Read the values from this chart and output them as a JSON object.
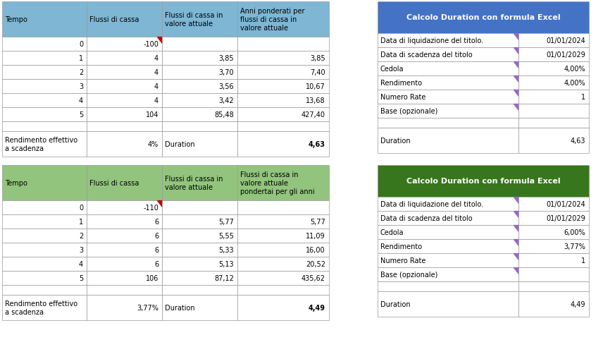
{
  "fig_width": 8.56,
  "fig_height": 5.1,
  "dpi": 100,
  "bg_color": "#ffffff",
  "table1": {
    "headers": [
      "Tempo",
      "Flussi di cassa",
      "Flussi di cassa in\nvalore attuale",
      "Anni ponderati per\nflussi di cassa in\nvalore attuale"
    ],
    "header_bg": "#7eb6d4",
    "header_text_color": "#000000",
    "rows": [
      [
        "0",
        "-100",
        "",
        ""
      ],
      [
        "1",
        "4",
        "3,85",
        "3,85"
      ],
      [
        "2",
        "4",
        "3,70",
        "7,40"
      ],
      [
        "3",
        "4",
        "3,56",
        "10,67"
      ],
      [
        "4",
        "4",
        "3,42",
        "13,68"
      ],
      [
        "5",
        "104",
        "85,48",
        "427,40"
      ]
    ],
    "summary_row": [
      "Rendimento effettivo\na scadenza",
      "4%",
      "Duration",
      "4,63"
    ],
    "summary_bold_cols": [
      3
    ],
    "grid_color": "#999999",
    "red_tri_row": 0,
    "red_tri_col": 1
  },
  "table2": {
    "headers": [
      "Tempo",
      "Flussi di cassa",
      "Flussi di cassa in\nvalore attuale",
      "Flussi di cassa in\nvalore attuale\npondertai per gli anni"
    ],
    "header_bg": "#93c47d",
    "header_text_color": "#000000",
    "rows": [
      [
        "0",
        "-110",
        "",
        ""
      ],
      [
        "1",
        "6",
        "5,77",
        "5,77"
      ],
      [
        "2",
        "6",
        "5,55",
        "11,09"
      ],
      [
        "3",
        "6",
        "5,33",
        "16,00"
      ],
      [
        "4",
        "6",
        "5,13",
        "20,52"
      ],
      [
        "5",
        "106",
        "87,12",
        "435,62"
      ]
    ],
    "summary_row": [
      "Rendimento effettivo\na scadenza",
      "3,77%",
      "Duration",
      "4,49"
    ],
    "summary_bold_cols": [
      3
    ],
    "grid_color": "#999999",
    "red_tri_row": 0,
    "red_tri_col": 1
  },
  "right_table1": {
    "title": "Calcolo Duration con formula Excel",
    "title_bg": "#4472c4",
    "title_text_color": "#ffffff",
    "rows": [
      [
        "Data di liquidazione del titolo.",
        "01/01/2024"
      ],
      [
        "Data di scadenza del titolo",
        "01/01/2029"
      ],
      [
        "Cedola",
        "4,00%"
      ],
      [
        "Rendimento",
        "4,00%"
      ],
      [
        "Numero Rate",
        "1"
      ],
      [
        "Base (opzionale)",
        ""
      ]
    ],
    "summary_row": [
      "Duration",
      "4,63"
    ],
    "grid_color": "#999999",
    "purple_accent": "#9966cc"
  },
  "right_table2": {
    "title": "Calcolo Duration con formula Excel",
    "title_bg": "#38761d",
    "title_text_color": "#ffffff",
    "rows": [
      [
        "Data di liquidazione del titolo.",
        "01/01/2024"
      ],
      [
        "Data di scadenza del titolo",
        "01/01/2029"
      ],
      [
        "Cedola",
        "6,00%"
      ],
      [
        "Rendimento",
        "3,77%"
      ],
      [
        "Numero Rate",
        "1"
      ],
      [
        "Base (opzionale)",
        ""
      ]
    ],
    "summary_row": [
      "Duration",
      "4,49"
    ],
    "grid_color": "#999999",
    "purple_accent": "#9966cc"
  },
  "font_size": 7.0,
  "red_triangle_color": "#cc0000"
}
